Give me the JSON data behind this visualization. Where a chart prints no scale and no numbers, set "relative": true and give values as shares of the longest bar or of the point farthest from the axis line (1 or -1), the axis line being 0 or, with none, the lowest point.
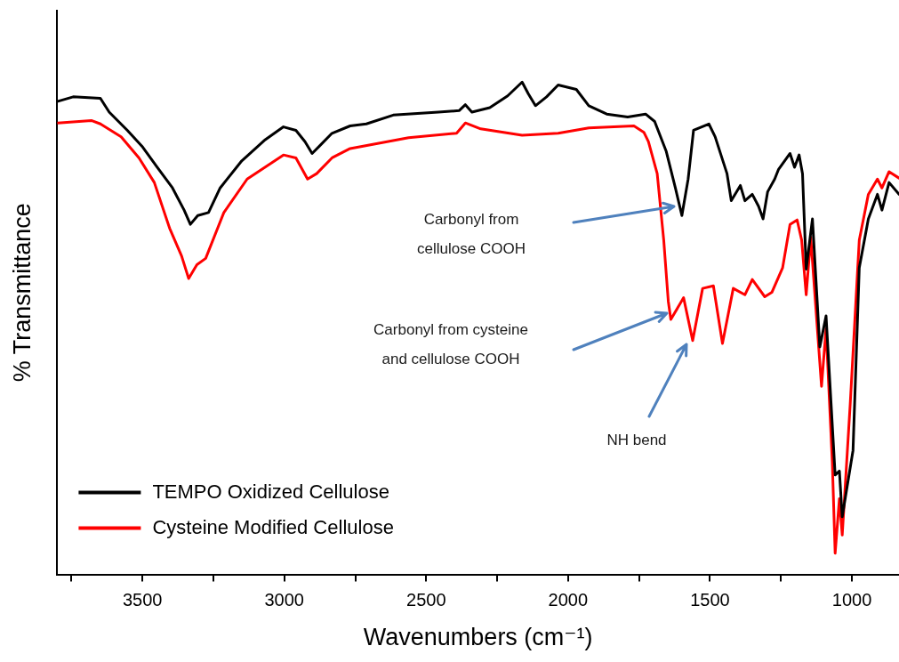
{
  "chart_data": {
    "type": "line",
    "relative": true,
    "xlabel": "Wavenumbers (cm⁻¹)",
    "ylabel": "% Transmittance",
    "xlim": [
      3800,
      834
    ],
    "xticks": [
      {
        "value": 3750,
        "label": null
      },
      3500,
      {
        "value": 3250,
        "label": null
      },
      3000,
      {
        "value": 2750,
        "label": null
      },
      2500,
      {
        "value": 2250,
        "label": null
      },
      2000,
      {
        "value": 1750,
        "label": null
      },
      1500,
      {
        "value": 1250,
        "label": null
      },
      1000
    ],
    "legend": "bottom left",
    "grid": false,
    "marker": "none",
    "line_style": "solid",
    "annotations": [
      "Carbonyl from cellulose COOH",
      "Carbonyl from cysteine and cellulose COOH",
      "NH bend"
    ],
    "series": [
      {
        "name": "TEMPO Oxidized Cellulose",
        "color": "#000000",
        "x": [
          3798,
          3744,
          3648,
          3617,
          3553,
          3499,
          3448,
          3394,
          3353,
          3331,
          3305,
          3267,
          3226,
          3150,
          3067,
          3003,
          2959,
          2927,
          2902,
          2876,
          2832,
          2768,
          2711,
          2616,
          2457,
          2384,
          2362,
          2339,
          2276,
          2213,
          2162,
          2140,
          2115,
          2076,
          2035,
          1971,
          1927,
          1864,
          1790,
          1727,
          1695,
          1654,
          1622,
          1599,
          1577,
          1558,
          1504,
          1482,
          1440,
          1425,
          1393,
          1377,
          1351,
          1329,
          1313,
          1297,
          1272,
          1259,
          1218,
          1202,
          1186,
          1174,
          1161,
          1139,
          1113,
          1091,
          1059,
          1044,
          1034,
          996,
          974,
          942,
          910,
          894,
          869,
          834
        ],
        "values": [
          0.961,
          0.97,
          0.967,
          0.939,
          0.902,
          0.868,
          0.827,
          0.785,
          0.74,
          0.711,
          0.729,
          0.735,
          0.785,
          0.84,
          0.883,
          0.909,
          0.902,
          0.879,
          0.855,
          0.87,
          0.896,
          0.911,
          0.915,
          0.933,
          0.939,
          0.942,
          0.954,
          0.939,
          0.948,
          0.972,
          1.0,
          0.976,
          0.952,
          0.97,
          0.994,
          0.985,
          0.952,
          0.935,
          0.929,
          0.935,
          0.92,
          0.859,
          0.785,
          0.729,
          0.803,
          0.902,
          0.915,
          0.889,
          0.814,
          0.759,
          0.79,
          0.759,
          0.772,
          0.748,
          0.722,
          0.777,
          0.803,
          0.822,
          0.855,
          0.827,
          0.852,
          0.814,
          0.62,
          0.722,
          0.462,
          0.525,
          0.202,
          0.21,
          0.117,
          0.252,
          0.623,
          0.722,
          0.772,
          0.74,
          0.796,
          0.772
        ]
      },
      {
        "name": "Cysteine Modified Cellulose",
        "color": "#ff0000",
        "x": [
          3798,
          3680,
          3648,
          3575,
          3512,
          3458,
          3404,
          3362,
          3337,
          3308,
          3277,
          3213,
          3131,
          3003,
          2959,
          2918,
          2886,
          2832,
          2768,
          2562,
          2393,
          2362,
          2308,
          2162,
          2035,
          1927,
          1768,
          1733,
          1717,
          1686,
          1663,
          1647,
          1638,
          1593,
          1561,
          1526,
          1488,
          1456,
          1418,
          1377,
          1351,
          1307,
          1282,
          1244,
          1218,
          1193,
          1177,
          1161,
          1145,
          1107,
          1091,
          1069,
          1059,
          1044,
          1034,
          1006,
          974,
          942,
          910,
          894,
          869,
          834
        ],
        "values": [
          0.917,
          0.922,
          0.915,
          0.889,
          0.846,
          0.796,
          0.703,
          0.647,
          0.601,
          0.629,
          0.642,
          0.735,
          0.803,
          0.852,
          0.846,
          0.803,
          0.814,
          0.846,
          0.865,
          0.887,
          0.896,
          0.917,
          0.905,
          0.892,
          0.896,
          0.907,
          0.911,
          0.898,
          0.879,
          0.814,
          0.679,
          0.555,
          0.518,
          0.562,
          0.475,
          0.581,
          0.586,
          0.469,
          0.581,
          0.568,
          0.599,
          0.564,
          0.573,
          0.623,
          0.711,
          0.72,
          0.679,
          0.568,
          0.685,
          0.382,
          0.499,
          0.228,
          0.043,
          0.154,
          0.08,
          0.345,
          0.679,
          0.772,
          0.803,
          0.785,
          0.818,
          0.805
        ]
      }
    ]
  }
}
